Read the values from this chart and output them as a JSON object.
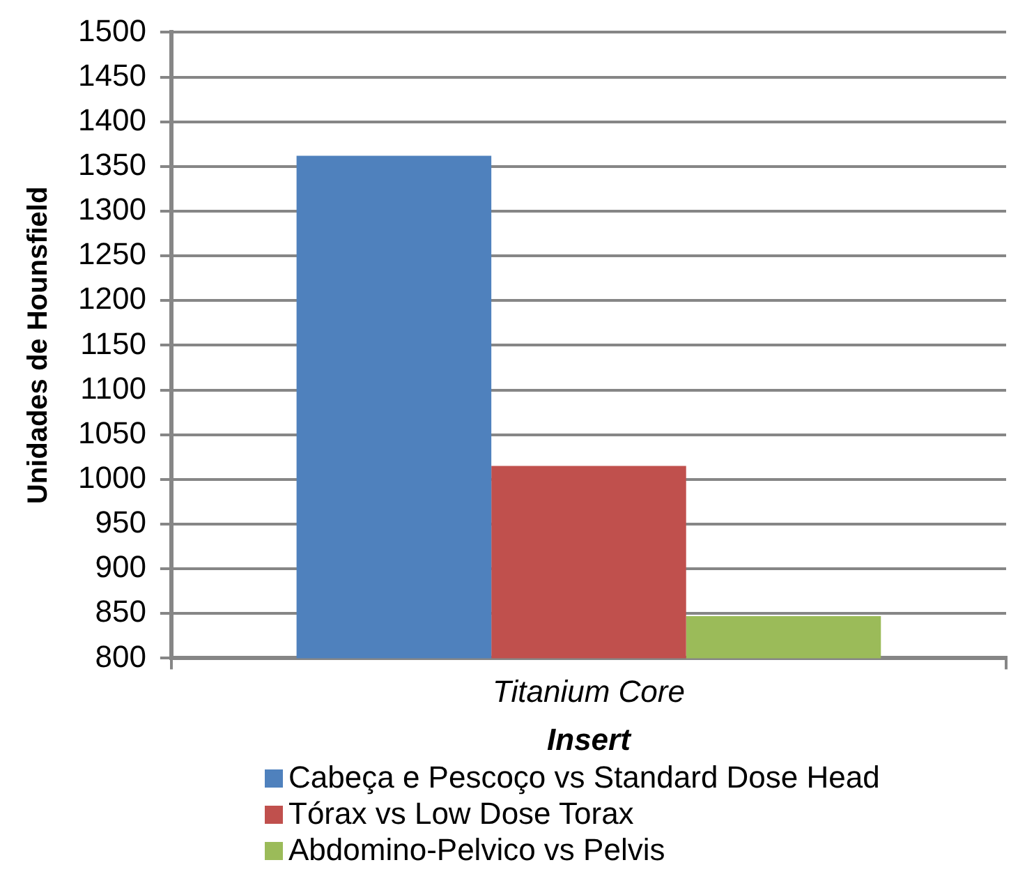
{
  "chart_data": {
    "type": "bar",
    "categories": [
      "Titanium Core"
    ],
    "xlabel": "Insert",
    "ylabel": "Unidades de Hounsfield",
    "series": [
      {
        "name": "Cabeça e Pescoço vs Standard Dose Head",
        "color": "#4f81bd",
        "values": [
          1362
        ]
      },
      {
        "name": "Tórax vs Low Dose Torax",
        "color": "#c0504d",
        "values": [
          1015
        ]
      },
      {
        "name": "Abdomino-Pelvico vs Pelvis",
        "color": "#9bbb59",
        "values": [
          847
        ]
      }
    ],
    "ylim": [
      800,
      1500
    ],
    "yticks": [
      800,
      850,
      900,
      950,
      1000,
      1050,
      1100,
      1150,
      1200,
      1250,
      1300,
      1350,
      1400,
      1450,
      1500
    ],
    "grid": "y",
    "legend": "bottom"
  }
}
